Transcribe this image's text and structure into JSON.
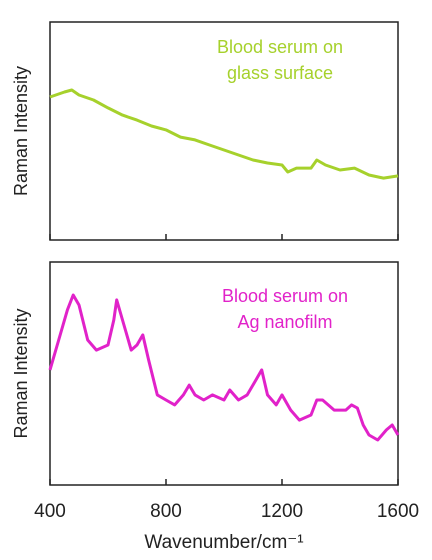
{
  "chart_data": [
    {
      "type": "line",
      "annotation": [
        "Blood serum on",
        "glass surface"
      ],
      "ylabel": "Raman Intensity",
      "x": [
        400,
        450,
        475,
        500,
        550,
        600,
        650,
        700,
        750,
        800,
        850,
        900,
        950,
        1000,
        1050,
        1100,
        1150,
        1200,
        1220,
        1250,
        1300,
        1320,
        1350,
        1400,
        1450,
        1500,
        1550,
        1600
      ],
      "series": [
        {
          "color": "#a6d12c",
          "values": [
            65.6,
            67.9,
            68.8,
            66.5,
            64.2,
            60.6,
            57.3,
            55.0,
            52.3,
            50.5,
            47.2,
            45.9,
            43.6,
            41.3,
            39.0,
            36.7,
            35.3,
            34.4,
            31.2,
            33.0,
            33.0,
            36.7,
            34.4,
            32.1,
            33.0,
            29.8,
            28.4,
            29.4
          ]
        }
      ],
      "xlim": [
        400,
        1600
      ],
      "xticks": [
        400,
        800,
        1200,
        1600
      ],
      "ylim": [
        0,
        100
      ]
    },
    {
      "type": "line",
      "annotation": [
        "Blood serum on",
        "Ag nanofilm"
      ],
      "ylabel": "Raman Intensity",
      "xlabel": "Wavenumber/cm⁻¹",
      "x": [
        400,
        430,
        460,
        480,
        500,
        530,
        560,
        600,
        620,
        630,
        650,
        680,
        700,
        720,
        740,
        770,
        800,
        830,
        860,
        880,
        900,
        930,
        960,
        1000,
        1020,
        1050,
        1080,
        1110,
        1130,
        1150,
        1180,
        1200,
        1230,
        1260,
        1300,
        1320,
        1340,
        1380,
        1420,
        1440,
        1460,
        1480,
        1500,
        1530,
        1560,
        1580,
        1600
      ],
      "series": [
        {
          "color": "#e122c9",
          "values": [
            51.6,
            65.0,
            78.5,
            85.2,
            80.7,
            65.0,
            60.5,
            62.8,
            74.0,
            83.0,
            74.0,
            60.5,
            62.8,
            67.3,
            56.1,
            40.4,
            38.1,
            35.9,
            40.4,
            44.8,
            40.4,
            38.1,
            40.4,
            38.1,
            42.6,
            38.1,
            40.4,
            47.1,
            51.6,
            40.4,
            35.9,
            40.4,
            33.6,
            29.1,
            31.4,
            38.1,
            38.1,
            33.6,
            33.6,
            35.9,
            34.5,
            26.9,
            22.4,
            20.2,
            24.7,
            26.9,
            22.4
          ]
        }
      ],
      "xlim": [
        400,
        1600
      ],
      "xticks": [
        400,
        800,
        1200,
        1600
      ],
      "ylim": [
        0,
        100
      ]
    }
  ]
}
